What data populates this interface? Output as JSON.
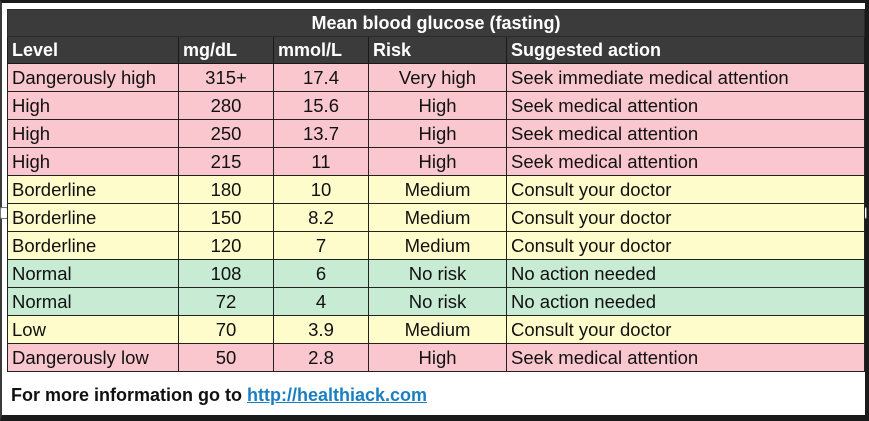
{
  "table": {
    "title": "Mean blood glucose (fasting)",
    "headers": [
      "Level",
      "mg/dL",
      "mmol/L",
      "Risk",
      "Suggested action"
    ],
    "rows": [
      {
        "level": "Dangerously high",
        "mg": "315+",
        "mmol": "17.4",
        "risk": "Very high",
        "action": "Seek immediate medical attention",
        "color": "#f9c7cd"
      },
      {
        "level": "High",
        "mg": "280",
        "mmol": "15.6",
        "risk": "High",
        "action": "Seek medical attention",
        "color": "#f9c7cd"
      },
      {
        "level": "High",
        "mg": "250",
        "mmol": "13.7",
        "risk": "High",
        "action": "Seek medical attention",
        "color": "#f9c7cd"
      },
      {
        "level": "High",
        "mg": "215",
        "mmol": "11",
        "risk": "High",
        "action": "Seek medical attention",
        "color": "#f9c7cd"
      },
      {
        "level": "Borderline",
        "mg": "180",
        "mmol": "10",
        "risk": "Medium",
        "action": "Consult your doctor",
        "color": "#fefccb"
      },
      {
        "level": "Borderline",
        "mg": "150",
        "mmol": "8.2",
        "risk": "Medium",
        "action": "Consult your doctor",
        "color": "#fefccb"
      },
      {
        "level": "Borderline",
        "mg": "120",
        "mmol": "7",
        "risk": "Medium",
        "action": "Consult your doctor",
        "color": "#fefccb"
      },
      {
        "level": "Normal",
        "mg": "108",
        "mmol": "6",
        "risk": "No risk",
        "action": "No action needed",
        "color": "#c7ebd3"
      },
      {
        "level": "Normal",
        "mg": "72",
        "mmol": "4",
        "risk": "No risk",
        "action": "No action needed",
        "color": "#c7ebd3"
      },
      {
        "level": "Low",
        "mg": "70",
        "mmol": "3.9",
        "risk": "Medium",
        "action": "Consult your doctor",
        "color": "#fefccb"
      },
      {
        "level": "Dangerously low",
        "mg": "50",
        "mmol": "2.8",
        "risk": "High",
        "action": "Seek medical attention",
        "color": "#f9c7cd"
      }
    ]
  },
  "footer": {
    "text": "For more information go to ",
    "link_text": "http://healthiack.com"
  },
  "colors": {
    "header_bg": "#3b3b3b",
    "danger": "#f9c7cd",
    "caution": "#fefccb",
    "normal": "#c7ebd3",
    "link": "#1a7fc1"
  }
}
